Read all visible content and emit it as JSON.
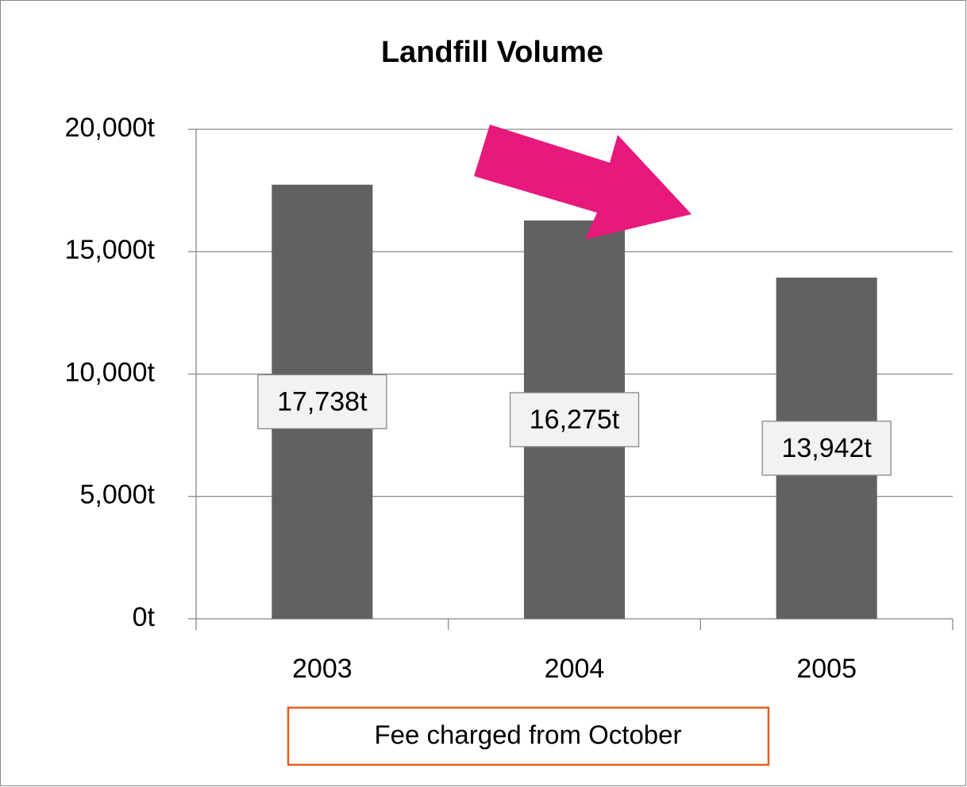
{
  "chart_data": {
    "type": "bar",
    "title": "Landfill Volume",
    "categories": [
      "2003",
      "2004",
      "2005"
    ],
    "values": [
      17738,
      16275,
      13942
    ],
    "value_labels": [
      "17,738t",
      "16,275t",
      "13,942t"
    ],
    "color": "#616161",
    "ylim": [
      0,
      20000
    ],
    "yticks": [
      {
        "value": 0,
        "label": "0t"
      },
      {
        "value": 5000,
        "label": "5,000t"
      },
      {
        "value": 10000,
        "label": "10,000t"
      },
      {
        "value": 15000,
        "label": "15,000t"
      },
      {
        "value": 20000,
        "label": "20,000t"
      }
    ],
    "grid": true,
    "annotation": "Fee charged from October"
  }
}
